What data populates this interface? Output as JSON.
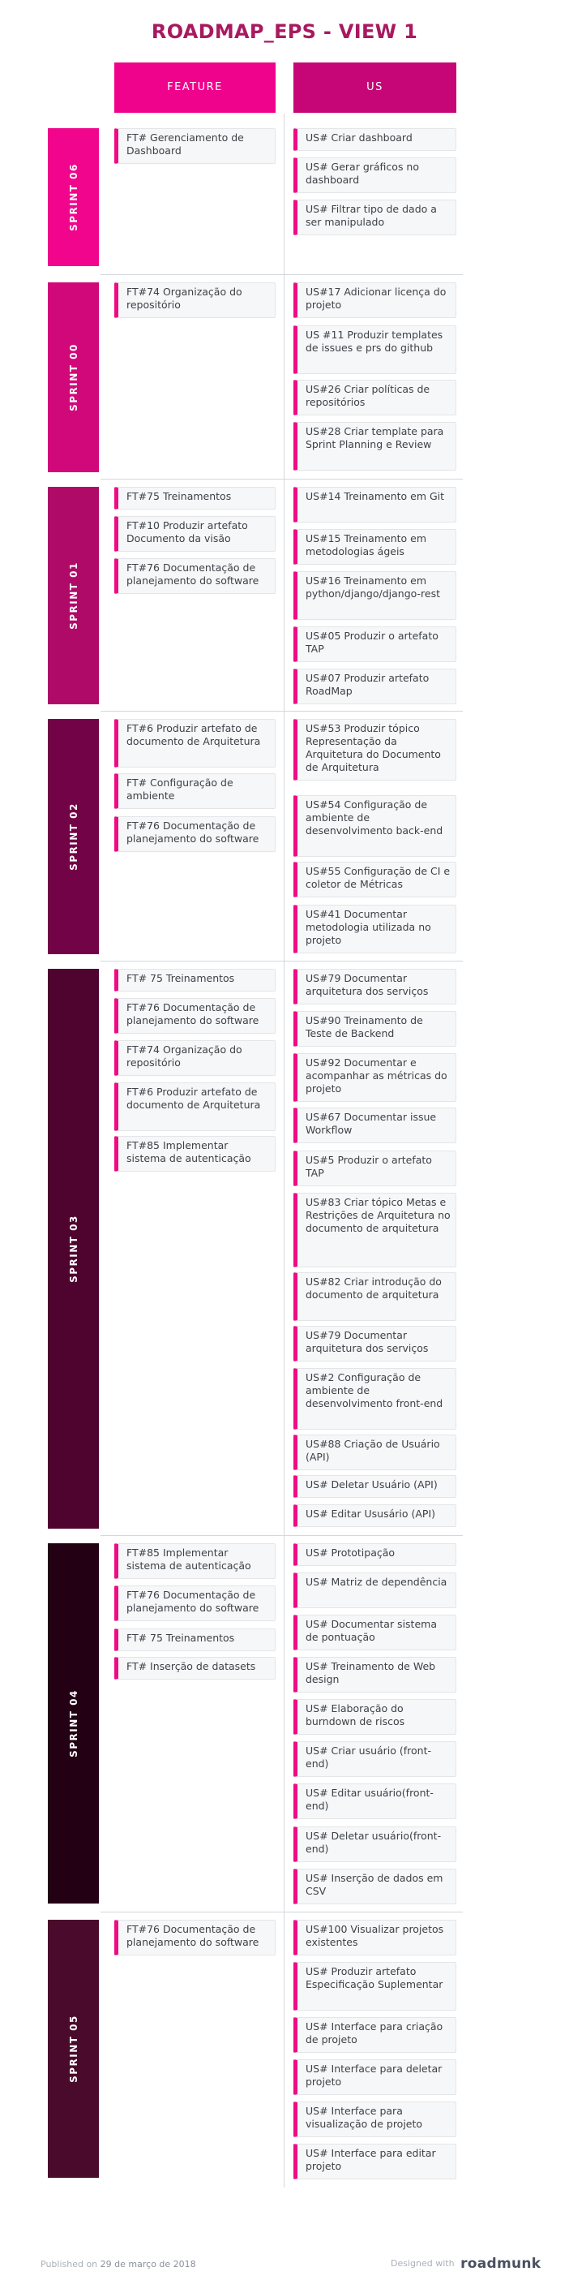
{
  "title": "ROADMAP_EPS - VIEW 1",
  "columns": {
    "feature": "FEATURE",
    "us": "US"
  },
  "colors": {
    "title": "#a8195f",
    "feature_header": "#f0038c",
    "us_header": "#c60676",
    "card_accent": "#ee0c84"
  },
  "sprints": [
    {
      "label": "SPRINT 06",
      "color": "#f0058c",
      "features": [
        "FT# Gerenciamento de Dashboard"
      ],
      "us": [
        "US# Criar dashboard",
        "US# Gerar gráficos no dashboard",
        "US# Filtrar tipo de dado a ser manipulado"
      ]
    },
    {
      "label": "SPRINT 00",
      "color": "#d1087a",
      "features": [
        "FT#74 Organização do repositório"
      ],
      "us": [
        "US#17 Adicionar licença do projeto",
        "US #11 Produzir templates de issues e prs do github",
        "US#26 Criar políticas de repositórios",
        "US#28 Criar template para Sprint Planning e Review"
      ]
    },
    {
      "label": "SPRINT 01",
      "color": "#b00a69",
      "features": [
        "FT#75 Treinamentos",
        "FT#10 Produzir artefato Documento da visão",
        "FT#76 Documentação de planejamento do software"
      ],
      "us": [
        "US#14 Treinamento em Git",
        "US#15 Treinamento em metodologias ágeis",
        "US#16 Treinamento em python/django/django-rest",
        "US#05 Produzir o artefato TAP",
        "US#07 Produzir artefato RoadMap"
      ]
    },
    {
      "label": "SPRINT 02",
      "color": "#720346",
      "features": [
        "FT#6 Produzir artefato de documento de Arquitetura",
        "FT# Configuração de ambiente",
        "FT#76 Documentação de planejamento do software"
      ],
      "us": [
        "US#53 Produzir tópico Representação da Arquitetura do Documento de Arquitetura",
        "US#54 Configuração de ambiente de desenvolvimento back-end",
        "US#55 Configuração de CI e coletor de Métricas",
        "US#41 Documentar metodologia utilizada no projeto"
      ]
    },
    {
      "label": "SPRINT 03",
      "color": "#4f0430",
      "features": [
        "FT# 75 Treinamentos",
        "FT#76 Documentação de planejamento do software",
        "FT#74 Organização do repositório",
        "FT#6 Produzir artefato de documento de Arquitetura",
        "FT#85 Implementar sistema de autenticação"
      ],
      "us": [
        "US#79 Documentar arquitetura dos serviços",
        "US#90 Treinamento de Teste de Backend",
        "US#92 Documentar e acompanhar as métricas do projeto",
        "US#67 Documentar issue Workflow",
        "US#5 Produzir o artefato TAP",
        "US#83 Criar tópico Metas e Restrições de Arquitetura no documento de arquitetura",
        "US#82 Criar introdução do documento de arquitetura",
        "US#79 Documentar arquitetura dos serviços",
        "US#2 Configuração de ambiente de desenvolvimento front-end",
        "US#88 Criação de Usuário (API)",
        "US# Deletar Usuário (API)",
        "US# Editar Ususário (API)"
      ]
    },
    {
      "label": "SPRINT 04",
      "color": "#230014",
      "features": [
        "FT#85 Implementar sistema de autenticação",
        "FT#76 Documentação de planejamento do software",
        "FT# 75 Treinamentos",
        "FT# Inserção de datasets"
      ],
      "us": [
        "US# Prototipação",
        "US# Matriz de dependência",
        "US# Documentar sistema de pontuação",
        "US# Treinamento de Web design",
        "US# Elaboração do burndown de riscos",
        "US# Criar usuário (front-end)",
        "US# Editar usuário(front-end)",
        "US# Deletar usuário(front-end)",
        "US# Inserção de dados em CSV"
      ]
    },
    {
      "label": "SPRINT 05",
      "color": "#4a0a2c",
      "features": [
        "FT#76 Documentação de planejamento do software"
      ],
      "us": [
        "US#100 Visualizar projetos existentes",
        "US# Produzir artefato Especificação Suplementar",
        "US# Interface para criação de projeto",
        "US# Interface para deletar projeto",
        "US# Interface para visualização de projeto",
        "US# Interface para editar projeto"
      ]
    }
  ],
  "footer": {
    "published_label": "Published on",
    "published_date": "29 de março de 2018",
    "designed_label": "Designed with",
    "brand": "roadmunk"
  }
}
